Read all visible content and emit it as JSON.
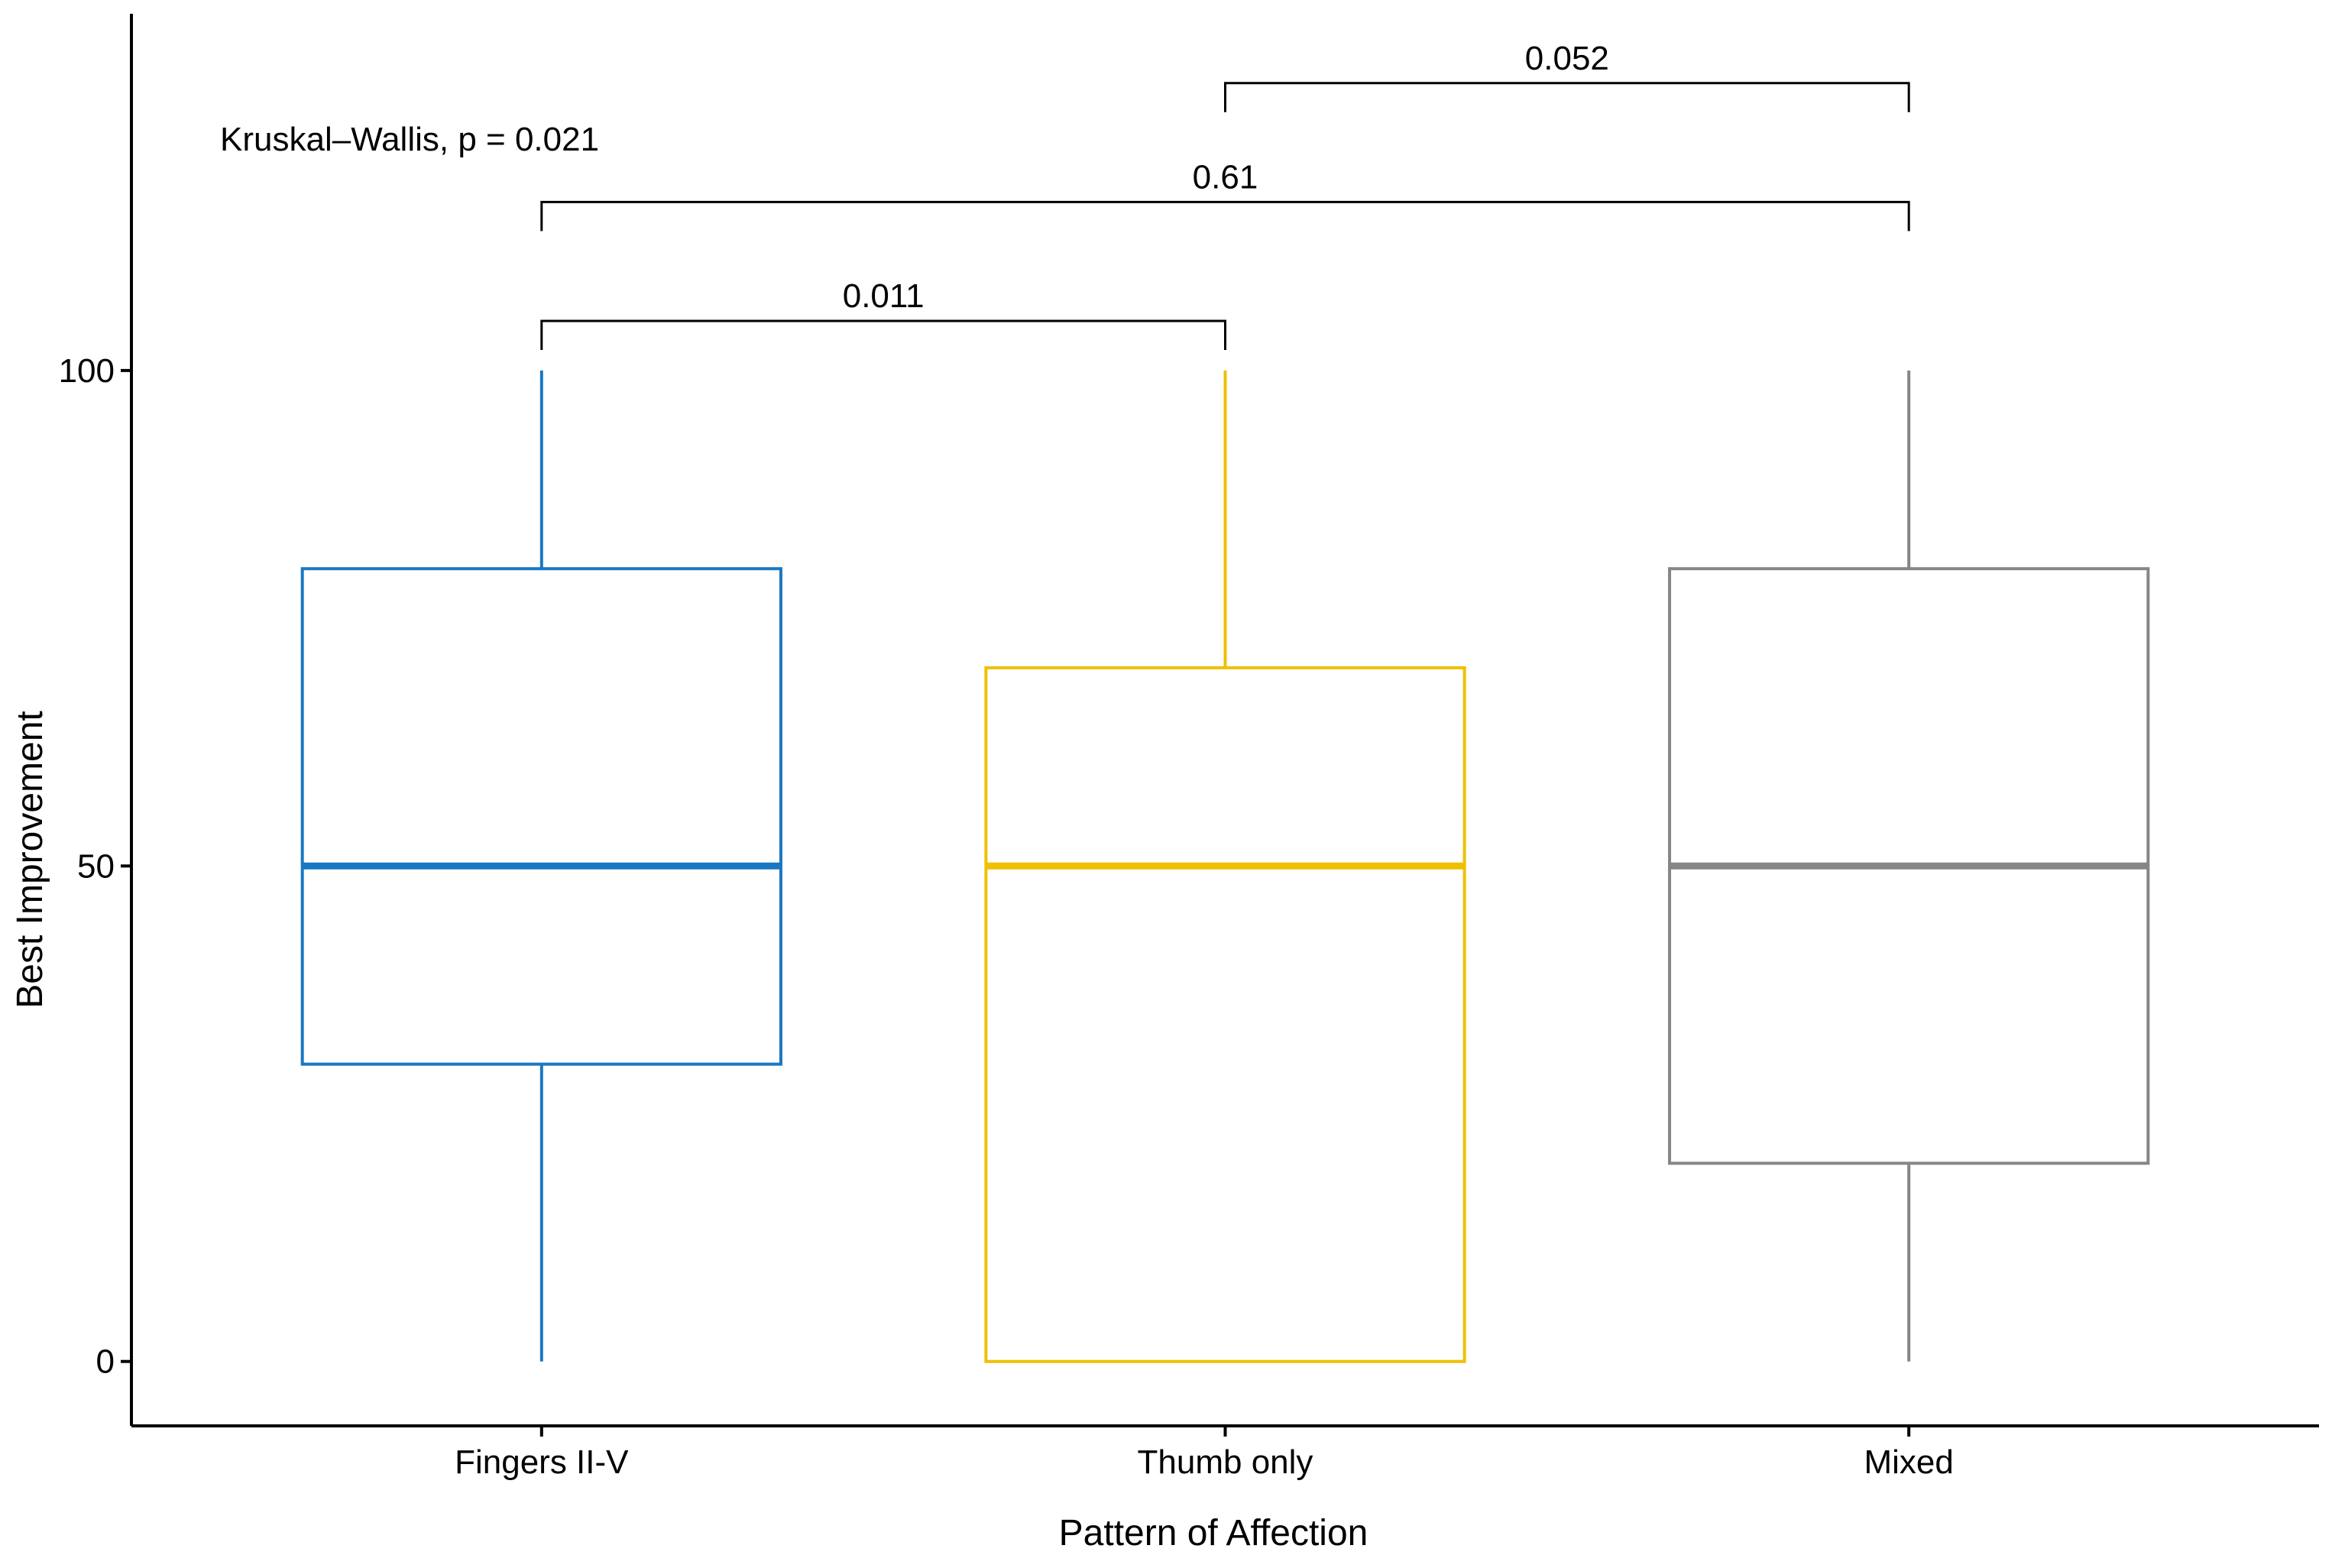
{
  "chart_data": {
    "type": "boxplot",
    "xlabel": "Pattern of Affection",
    "ylabel": "Best Improvement",
    "ylim": [
      -6.5,
      136
    ],
    "y_ticks": [
      0,
      50,
      100
    ],
    "y_tick_labels": [
      "0",
      "50",
      "100"
    ],
    "grid": false,
    "categories": [
      "Fingers II-V",
      "Thumb only",
      "Mixed"
    ],
    "boxes": [
      {
        "category": "Fingers II-V",
        "color": "#1a78c2",
        "min": 0,
        "q1": 30,
        "median": 50,
        "q3": 80,
        "max": 100
      },
      {
        "category": "Thumb only",
        "color": "#efc000",
        "min": 0,
        "q1": 0,
        "median": 50,
        "q3": 70,
        "max": 100
      },
      {
        "category": "Mixed",
        "color": "#868686",
        "min": 0,
        "q1": 20,
        "median": 50,
        "q3": 80,
        "max": 100
      }
    ],
    "annotations": {
      "global_test": "Kruskal–Wallis, p = 0.021",
      "comparisons": [
        {
          "from": "Fingers II-V",
          "to": "Thumb only",
          "label": "0.011",
          "level": 105
        },
        {
          "from": "Fingers II-V",
          "to": "Mixed",
          "label": "0.61",
          "level": 117
        },
        {
          "from": "Thumb only",
          "to": "Mixed",
          "label": "0.052",
          "level": 129
        }
      ]
    }
  }
}
